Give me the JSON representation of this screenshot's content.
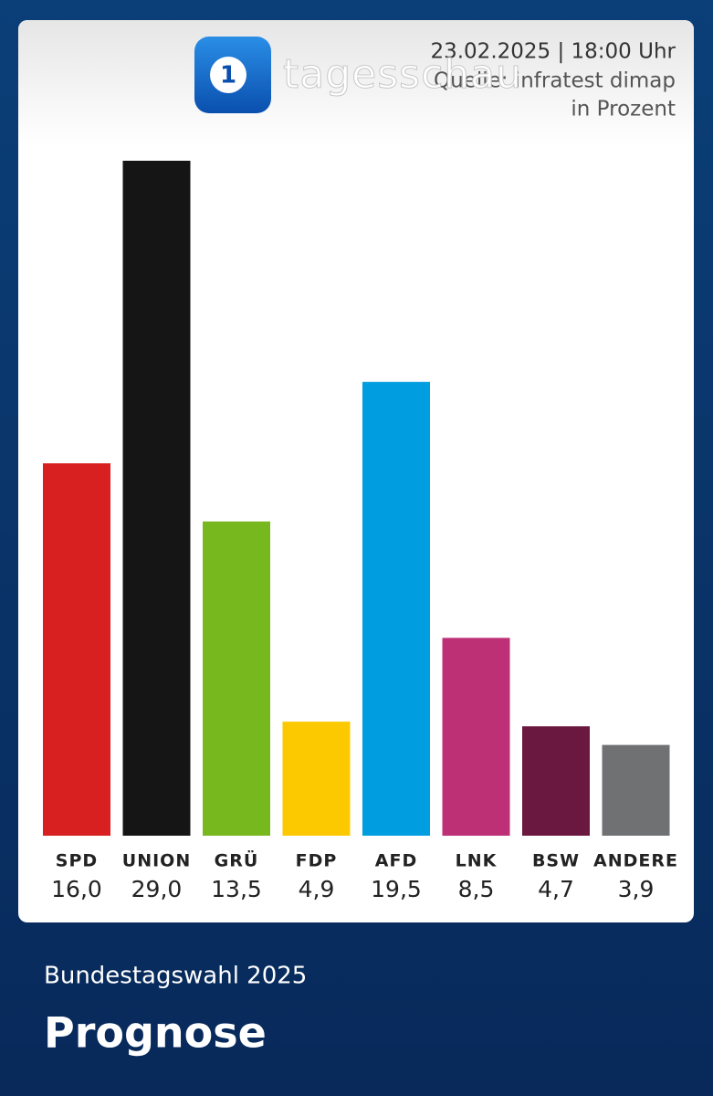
{
  "header": {
    "logo_mark": "1",
    "logo_text": "tagesschau",
    "date": "23.02.2025 | 18:00 Uhr",
    "source": "Quelle: infratest dimap",
    "unit": "in Prozent"
  },
  "chart_data": {
    "type": "bar",
    "categories": [
      "SPD",
      "UNION",
      "GRÜ",
      "FDP",
      "AFD",
      "LNK",
      "BSW",
      "ANDERE"
    ],
    "values": [
      16.0,
      29.0,
      13.5,
      4.9,
      19.5,
      8.5,
      4.7,
      3.9
    ],
    "value_labels": [
      "16,0",
      "29,0",
      "13,5",
      "4,9",
      "19,5",
      "8,5",
      "4,7",
      "3,9"
    ],
    "colors": [
      "#d7201f",
      "#151515",
      "#78b81f",
      "#fcc900",
      "#009ee0",
      "#be3075",
      "#6b1840",
      "#707173"
    ]
  },
  "footer": {
    "subtitle": "Bundestagswahl 2025",
    "title": "Prognose"
  }
}
